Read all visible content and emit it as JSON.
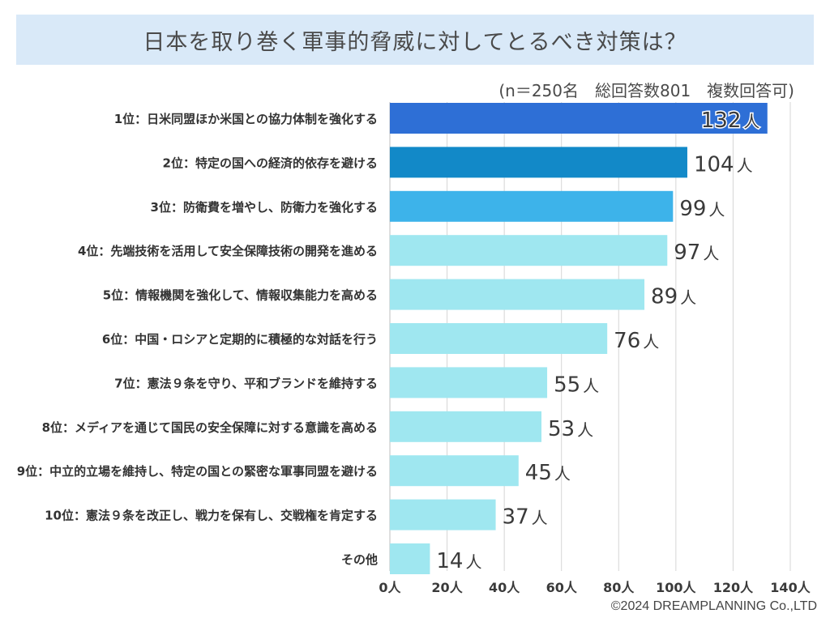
{
  "title": "日本を取り巻く軍事的脅威に対してとるべき対策は？",
  "note": "(n＝250名　総回答数801　複数回答可)",
  "copyright": "©2024 DREAMPLANNING Co.,LTD",
  "unit": "人",
  "colors": {
    "top1": "#2e6fd6",
    "top2": "#1289c8",
    "top3": "#3db3ea",
    "rest": "#9fe7f0",
    "label_text": "#333333",
    "value_text": "#3a3a3a",
    "grid": "#d6d6d6"
  },
  "chart_data": {
    "type": "bar",
    "orientation": "horizontal",
    "title": "日本を取り巻く軍事的脅威に対してとるべき対策は？",
    "categories": [
      "1位：日米同盟ほか米国との協力体制を強化する",
      "2位：特定の国への経済的依存を避ける",
      "3位：防衛費を増やし、防衛力を強化する",
      "4位：先端技術を活用して安全保障技術の開発を進める",
      "5位：情報機関を強化して、情報収集能力を高める",
      "6位：中国・ロシアと定期的に積極的な対話を行う",
      "7位：憲法９条を守り、平和ブランドを維持する",
      "8位：メディアを通じて国民の安全保障に対する意識を高める",
      "9位：中立的立場を維持し、特定の国との緊密な軍事同盟を避ける",
      "10位：憲法９条を改正し、戦力を保有し、交戦権を肯定する",
      "その他"
    ],
    "values": [
      132,
      104,
      99,
      97,
      89,
      76,
      55,
      53,
      45,
      37,
      14
    ],
    "value_labels": [
      "132",
      "104",
      "99",
      "97",
      "89",
      "76",
      "55",
      "53",
      "45",
      "37",
      "14"
    ],
    "xlim": [
      0,
      140
    ],
    "xticks": [
      0,
      20,
      40,
      60,
      80,
      100,
      120,
      140
    ],
    "xtick_labels": [
      "0人",
      "20人",
      "40人",
      "60人",
      "80人",
      "100人",
      "120人",
      "140人"
    ],
    "xlabel": "",
    "ylabel": "",
    "grid": true
  }
}
